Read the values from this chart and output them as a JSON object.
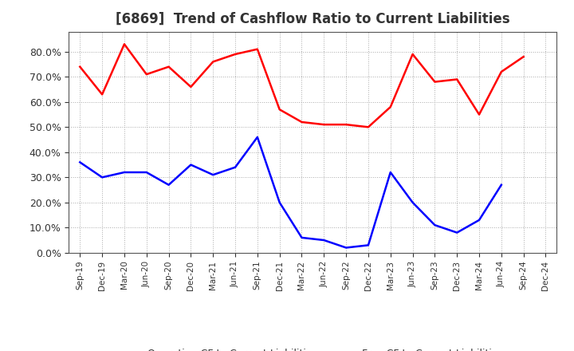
{
  "title": "[6869]  Trend of Cashflow Ratio to Current Liabilities",
  "x_labels": [
    "Sep-19",
    "Dec-19",
    "Mar-20",
    "Jun-20",
    "Sep-20",
    "Dec-20",
    "Mar-21",
    "Jun-21",
    "Sep-21",
    "Dec-21",
    "Mar-22",
    "Jun-22",
    "Sep-22",
    "Dec-22",
    "Mar-23",
    "Jun-23",
    "Sep-23",
    "Dec-23",
    "Mar-24",
    "Jun-24",
    "Sep-24",
    "Dec-24"
  ],
  "operating_cf": [
    0.74,
    0.63,
    0.83,
    0.71,
    0.74,
    0.66,
    0.76,
    0.79,
    0.81,
    0.57,
    0.52,
    0.51,
    0.51,
    0.5,
    0.58,
    0.79,
    0.68,
    0.69,
    0.55,
    0.72,
    0.78,
    null
  ],
  "free_cf": [
    0.36,
    0.3,
    0.32,
    0.32,
    0.27,
    0.35,
    0.31,
    0.34,
    0.46,
    0.2,
    0.06,
    0.05,
    0.02,
    0.03,
    0.32,
    0.2,
    0.11,
    0.08,
    0.13,
    0.27,
    null,
    null
  ],
  "operating_color": "#FF0000",
  "free_color": "#0000FF",
  "ylim": [
    0.0,
    0.88
  ],
  "yticks": [
    0.0,
    0.1,
    0.2,
    0.3,
    0.4,
    0.5,
    0.6,
    0.7,
    0.8
  ],
  "legend_labels": [
    "Operating CF to Current Liabilities",
    "Free CF to Current Liabilities"
  ],
  "background_color": "#FFFFFF",
  "grid_color": "#AAAAAA",
  "title_color": "#333333",
  "tick_color": "#333333"
}
